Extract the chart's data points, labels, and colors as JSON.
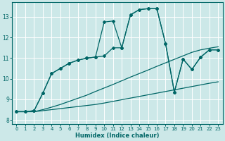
{
  "xlabel": "Humidex (Indice chaleur)",
  "background_color": "#cce8e8",
  "grid_color": "#ffffff",
  "line_color": "#006666",
  "xlim": [
    -0.5,
    23.5
  ],
  "ylim": [
    7.8,
    13.7
  ],
  "xticks": [
    0,
    1,
    2,
    3,
    4,
    5,
    6,
    7,
    8,
    9,
    10,
    11,
    12,
    13,
    14,
    15,
    16,
    17,
    18,
    19,
    20,
    21,
    22,
    23
  ],
  "yticks": [
    8,
    9,
    10,
    11,
    12,
    13
  ],
  "line1_y": [
    8.4,
    8.4,
    8.4,
    8.45,
    8.5,
    8.55,
    8.6,
    8.65,
    8.7,
    8.75,
    8.82,
    8.9,
    8.98,
    9.06,
    9.14,
    9.22,
    9.3,
    9.38,
    9.46,
    9.54,
    9.62,
    9.7,
    9.78,
    9.85
  ],
  "line2_y": [
    8.4,
    8.4,
    8.4,
    8.5,
    8.62,
    8.75,
    8.9,
    9.05,
    9.2,
    9.38,
    9.55,
    9.72,
    9.9,
    10.08,
    10.25,
    10.42,
    10.6,
    10.77,
    10.94,
    11.11,
    11.28,
    11.4,
    11.48,
    11.55
  ],
  "line3_x": [
    0,
    1,
    2,
    3,
    4,
    5,
    6,
    7,
    8,
    9,
    10,
    11,
    12,
    13,
    14,
    15,
    16,
    17,
    18,
    19,
    20,
    21,
    22,
    23
  ],
  "line3_y": [
    8.4,
    8.4,
    8.45,
    9.3,
    10.25,
    10.5,
    10.75,
    10.9,
    11.0,
    11.05,
    11.1,
    11.5,
    11.5,
    13.1,
    13.35,
    13.4,
    13.4,
    11.7,
    9.35,
    10.95,
    10.45,
    11.05,
    11.4,
    11.4
  ],
  "line4_x": [
    0,
    1,
    2,
    3,
    4,
    5,
    6,
    7,
    8,
    9,
    10,
    11,
    12,
    13,
    14,
    15,
    16,
    17,
    18,
    19,
    20,
    21,
    22,
    23
  ],
  "line4_y": [
    8.4,
    8.4,
    8.45,
    9.3,
    10.25,
    10.5,
    10.75,
    10.9,
    11.0,
    11.05,
    12.75,
    12.8,
    11.5,
    13.1,
    13.35,
    13.4,
    13.4,
    11.7,
    9.35,
    10.95,
    10.45,
    11.05,
    11.4,
    11.4
  ]
}
